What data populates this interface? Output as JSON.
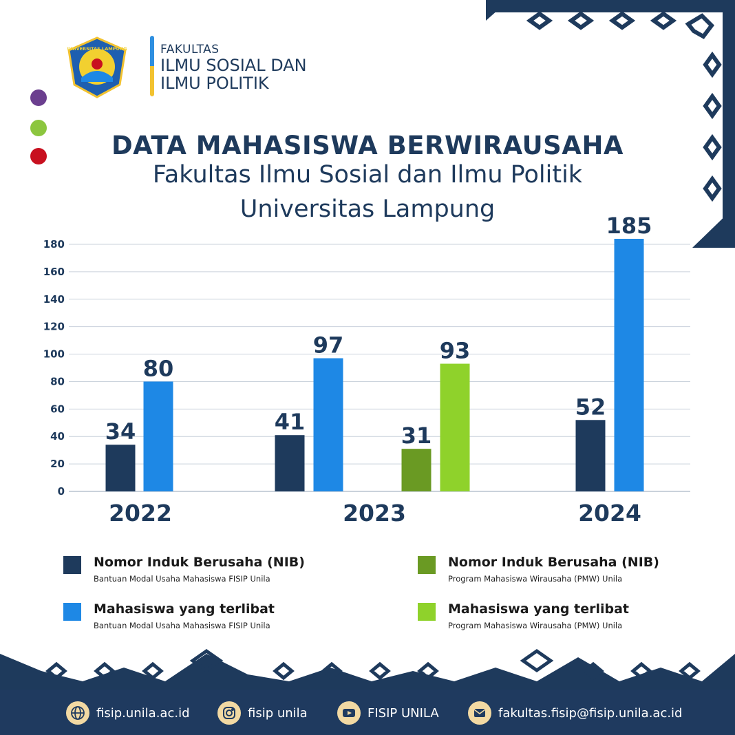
{
  "header": {
    "logo_text": "UNIVERSITAS LAMPUNG",
    "faculty_line1": "FAKULTAS",
    "faculty_line2": "ILMU SOSIAL DAN",
    "faculty_line3": "ILMU POLITIK"
  },
  "colors": {
    "navy": "#1e3a5c",
    "blue": "#1e88e5",
    "olive": "#6a9a23",
    "lime": "#8fd22b",
    "dot_purple": "#6b3f8f",
    "dot_green": "#8cc63f",
    "dot_red": "#c8101f",
    "footer_bg": "#1f3a5f",
    "icon_bg": "#f2d9a3"
  },
  "title": {
    "line1": "DATA MAHASISWA BERWIRAUSAHA",
    "line2": "Fakultas Ilmu Sosial dan Ilmu Politik",
    "line3": "Universitas Lampung"
  },
  "chart_data": {
    "type": "bar",
    "categories": [
      "2022",
      "2023",
      "2024"
    ],
    "yticks": [
      0,
      20,
      40,
      60,
      80,
      100,
      120,
      140,
      160,
      180
    ],
    "ylim": [
      0,
      180
    ],
    "grid": true,
    "bars": [
      {
        "category": "2022",
        "series": "nib_bantuan",
        "value": 34
      },
      {
        "category": "2022",
        "series": "mhs_bantuan",
        "value": 80
      },
      {
        "category": "2023",
        "series": "nib_bantuan",
        "value": 41
      },
      {
        "category": "2023",
        "series": "mhs_bantuan",
        "value": 97
      },
      {
        "category": "2023",
        "series": "nib_pmw",
        "value": 31
      },
      {
        "category": "2023",
        "series": "mhs_pmw",
        "value": 93
      },
      {
        "category": "2024",
        "series": "nib_bantuan",
        "value": 52
      },
      {
        "category": "2024",
        "series": "mhs_bantuan",
        "value": 185
      }
    ],
    "series": [
      {
        "key": "nib_bantuan",
        "name": "Nomor Induk Berusaha (NIB)",
        "subtitle": "Bantuan Modal Usaha Mahasiswa FISIP Unila",
        "color": "#1e3a5c"
      },
      {
        "key": "mhs_bantuan",
        "name": "Mahasiswa yang terlibat",
        "subtitle": "Bantuan Modal Usaha Mahasiswa FISIP Unila",
        "color": "#1e88e5"
      },
      {
        "key": "nib_pmw",
        "name": "Nomor Induk Berusaha (NIB)",
        "subtitle": "Program Mahasiswa Wirausaha (PMW) Unila",
        "color": "#6a9a23"
      },
      {
        "key": "mhs_pmw",
        "name": "Mahasiswa yang terlibat",
        "subtitle": "Program Mahasiswa Wirausaha (PMW) Unila",
        "color": "#8fd22b"
      }
    ],
    "legend_position": "bottom"
  },
  "footer": {
    "website": "fisip.unila.ac.id",
    "instagram": "fisip unila",
    "youtube": "FISIP UNILA",
    "email": "fakultas.fisip@fisip.unila.ac.id",
    "icons": [
      "globe-icon",
      "instagram-icon",
      "youtube-icon",
      "mail-icon"
    ]
  }
}
